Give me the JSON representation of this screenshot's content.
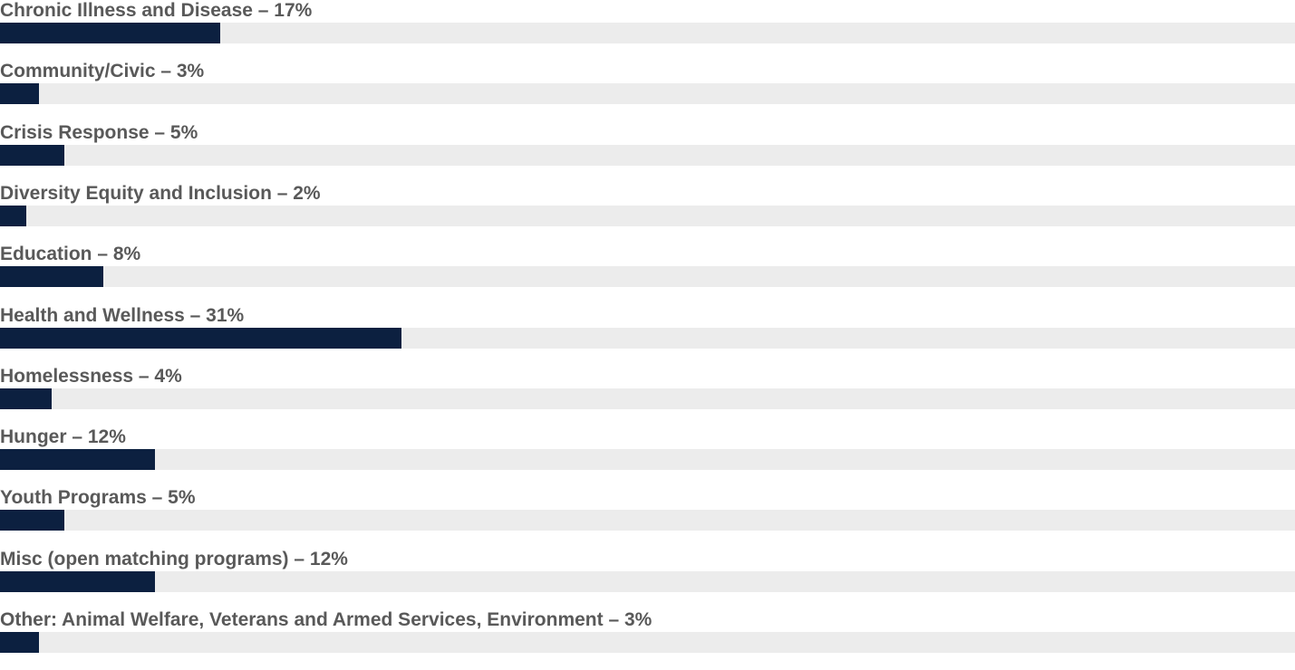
{
  "chart_data": {
    "type": "bar",
    "orientation": "horizontal",
    "value_unit": "%",
    "xlim": [
      0,
      100
    ],
    "grid": false,
    "legend": "none",
    "bar_color": "#0c2040",
    "track_color": "#ececec",
    "label_color": "#595959",
    "categories": [
      "Chronic Illness and Disease – 17%",
      "Community/Civic – 3%",
      "Crisis Response – 5%",
      "Diversity Equity and Inclusion – 2%",
      "Education – 8%",
      "Health and Wellness – 31%",
      "Homelessness – 4%",
      "Hunger – 12%",
      "Youth Programs – 5%",
      "Misc (open matching programs) – 12%",
      "Other: Animal Welfare, Veterans and Armed Services, Environment – 3%"
    ],
    "values": [
      17,
      3,
      5,
      2,
      8,
      31,
      4,
      12,
      5,
      12,
      3
    ]
  }
}
